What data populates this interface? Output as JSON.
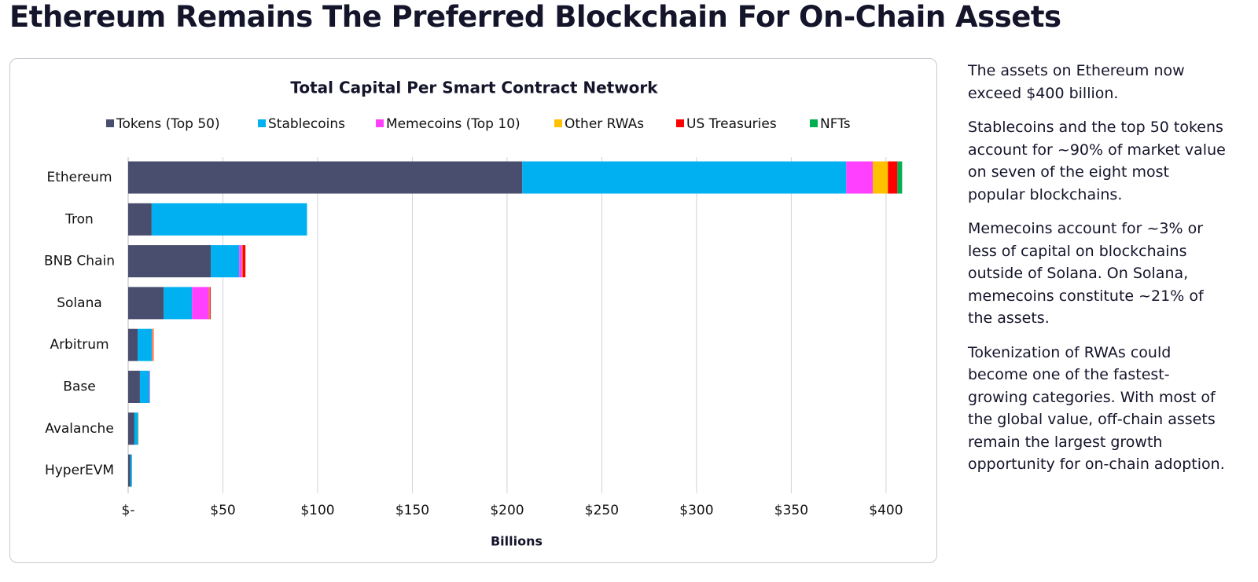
{
  "header": {
    "title": "Ethereum Remains The Preferred Blockchain For On-Chain Assets"
  },
  "chart_data": {
    "type": "bar",
    "orientation": "horizontal",
    "stacked": true,
    "title": "Total Capital Per Smart Contract Network",
    "x_label": "Billions",
    "categories": [
      "Ethereum",
      "Tron",
      "BNB Chain",
      "Solana",
      "Arbitrum",
      "Base",
      "Avalanche",
      "HyperEVM"
    ],
    "series": [
      {
        "name": "Tokens (Top 50)",
        "color": "#4a4e6e",
        "values": [
          208,
          12.4,
          43.6,
          18.7,
          5,
          6.2,
          3.3,
          1.2
        ]
      },
      {
        "name": "Stablecoins",
        "color": "#00b0f0",
        "values": [
          171,
          82,
          15,
          15,
          7.5,
          5,
          2,
          0.8
        ]
      },
      {
        "name": "Memecoins (Top 10)",
        "color": "#ff40ff",
        "values": [
          14,
          0,
          1.5,
          9,
          0.2,
          0.3,
          0,
          0
        ]
      },
      {
        "name": "Other RWAs",
        "color": "#ffc000",
        "values": [
          8,
          0,
          0.3,
          0.3,
          0.4,
          0,
          0.2,
          0
        ]
      },
      {
        "name": "US Treasuries",
        "color": "#ff0000",
        "values": [
          5,
          0,
          1.5,
          0.5,
          0.3,
          0,
          0,
          0
        ]
      },
      {
        "name": "NFTs",
        "color": "#00b050",
        "values": [
          2.5,
          0,
          0,
          0.1,
          0,
          0,
          0,
          0
        ]
      }
    ],
    "xlim": [
      0,
      410
    ],
    "xticks": [
      {
        "value": 0,
        "label": "$-"
      },
      {
        "value": 50,
        "label": "$50"
      },
      {
        "value": 100,
        "label": "$100"
      },
      {
        "value": 150,
        "label": "$150"
      },
      {
        "value": 200,
        "label": "$200"
      },
      {
        "value": 250,
        "label": "$250"
      },
      {
        "value": 300,
        "label": "$300"
      },
      {
        "value": 350,
        "label": "$350"
      },
      {
        "value": 400,
        "label": "$400"
      }
    ],
    "grid": true,
    "legend": "top"
  },
  "notes": [
    "The assets on Ethereum now exceed $400 billion.",
    "Stablecoins and the top 50 tokens account for ~90% of market value on seven of the eight most popular blockchains.",
    "Memecoins account for ~3% or less of capital on blockchains outside of Solana. On Solana, memecoins constitute ~21% of the assets.",
    "Tokenization of RWAs could become one of the fastest-growing categories. With most of the global value, off-chain assets remain the largest growth opportunity for on-chain adoption."
  ]
}
